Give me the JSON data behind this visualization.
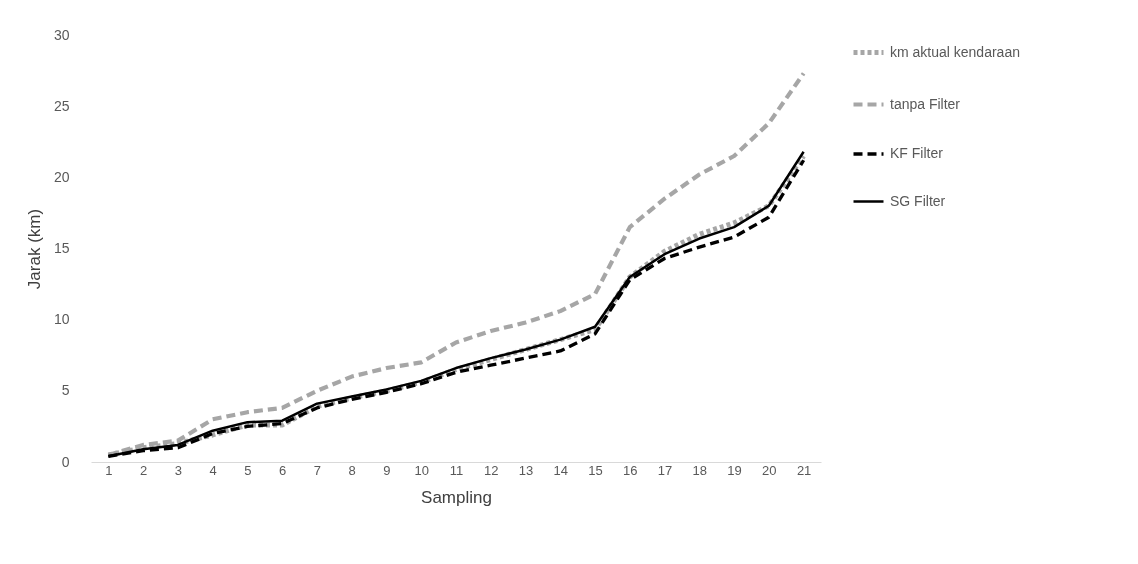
{
  "chart_data": {
    "type": "line",
    "xlabel": "Sampling",
    "ylabel": "Jarak (km)",
    "x": [
      1,
      2,
      3,
      4,
      5,
      6,
      7,
      8,
      9,
      10,
      11,
      12,
      13,
      14,
      15,
      16,
      17,
      18,
      19,
      20,
      21
    ],
    "xlim": [
      0.5,
      21.5
    ],
    "xticks": [
      1,
      2,
      3,
      4,
      5,
      6,
      7,
      8,
      9,
      10,
      11,
      12,
      13,
      14,
      15,
      16,
      17,
      18,
      19,
      20,
      21
    ],
    "series": [
      {
        "name": "km aktual kendaraan",
        "color": "#a6a6a6",
        "line_style": "dotted",
        "values": [
          0.5,
          1.0,
          1.3,
          1.9,
          2.6,
          2.6,
          3.9,
          4.5,
          5.0,
          5.6,
          6.5,
          7.2,
          7.9,
          8.6,
          9.3,
          13.0,
          14.8,
          16.0,
          16.8,
          18.0,
          21.5
        ]
      },
      {
        "name": "tanpa Filter",
        "color": "#a6a6a6",
        "line_style": "dashed",
        "values": [
          0.5,
          1.2,
          1.5,
          3.0,
          3.5,
          3.8,
          5.0,
          6.0,
          6.6,
          7.0,
          8.4,
          9.2,
          9.8,
          10.6,
          11.8,
          16.5,
          18.5,
          20.2,
          21.5,
          23.8,
          27.3
        ]
      },
      {
        "name": "KF Filter",
        "color": "#000000",
        "line_style": "dashed",
        "values": [
          0.4,
          0.8,
          1.0,
          2.0,
          2.5,
          2.7,
          3.8,
          4.4,
          4.9,
          5.5,
          6.3,
          6.8,
          7.3,
          7.8,
          9.0,
          12.8,
          14.3,
          15.1,
          15.8,
          17.2,
          21.2
        ]
      },
      {
        "name": "SG Filter",
        "color": "#000000",
        "line_style": "solid",
        "values": [
          0.4,
          0.9,
          1.2,
          2.2,
          2.8,
          2.9,
          4.1,
          4.6,
          5.1,
          5.7,
          6.6,
          7.3,
          7.9,
          8.6,
          9.5,
          13.0,
          14.6,
          15.7,
          16.5,
          18.0,
          21.8
        ]
      }
    ],
    "ylim": [
      0,
      30
    ],
    "yticks": [
      0,
      5,
      10,
      15,
      20,
      25,
      30
    ],
    "grid": false,
    "legend": "right",
    "marker": "none"
  }
}
